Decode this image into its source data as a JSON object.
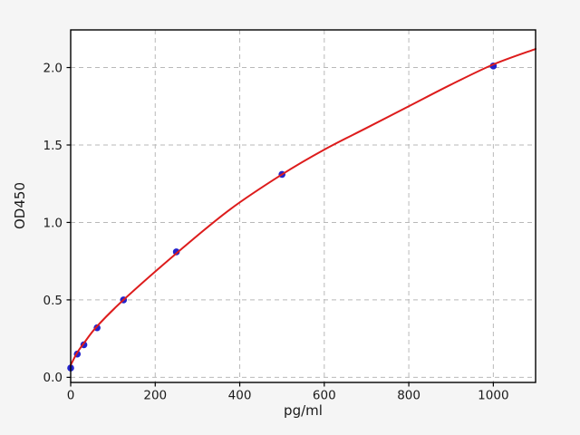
{
  "figure": {
    "background_color": "#f5f5f5",
    "plot_background_color": "#ffffff",
    "title": ""
  },
  "chart_data": {
    "type": "scatter",
    "subtype": "standard-curve-with-fitted-line",
    "title": "",
    "xlabel": "pg/ml",
    "ylabel": "OD450",
    "x_axis": {
      "lim": [
        0,
        1100
      ],
      "ticks": [
        0,
        200,
        400,
        600,
        800,
        1000
      ],
      "tick_labels": [
        "0",
        "200",
        "400",
        "600",
        "800",
        "1000"
      ]
    },
    "y_axis": {
      "lim": [
        -0.033,
        2.243
      ],
      "ticks": [
        0.0,
        0.5,
        1.0,
        1.5,
        2.0
      ],
      "tick_labels": [
        "0.0",
        "0.5",
        "1.0",
        "1.5",
        "2.0"
      ]
    },
    "grid": {
      "show": true,
      "style": "dashed",
      "color": "#b9b9b9"
    },
    "legend": {
      "show": false
    },
    "series": [
      {
        "name": "standard-points",
        "type": "scatter",
        "color": "#2323cc",
        "marker": "circle",
        "marker_radius": 3.8,
        "x": [
          0,
          15.6,
          31.2,
          62.5,
          125,
          250,
          500,
          1000
        ],
        "y": [
          0.06,
          0.15,
          0.21,
          0.32,
          0.5,
          0.81,
          1.31,
          2.01
        ]
      },
      {
        "name": "fit-curve",
        "type": "line",
        "color": "#dd1c1c",
        "line_width": 2,
        "x": [
          0,
          15.6,
          31.2,
          62.5,
          125,
          250,
          375,
          500,
          600,
          700,
          800,
          900,
          1000,
          1100
        ],
        "y": [
          0.08,
          0.16,
          0.22,
          0.33,
          0.5,
          0.8,
          1.08,
          1.31,
          1.47,
          1.61,
          1.75,
          1.89,
          2.02,
          2.12
        ]
      }
    ],
    "colors": {
      "spine": "#000000",
      "tick_text": "#1a1a1a",
      "grid": "#b9b9b9",
      "scatter": "#2323cc",
      "line": "#dd1c1c"
    }
  }
}
